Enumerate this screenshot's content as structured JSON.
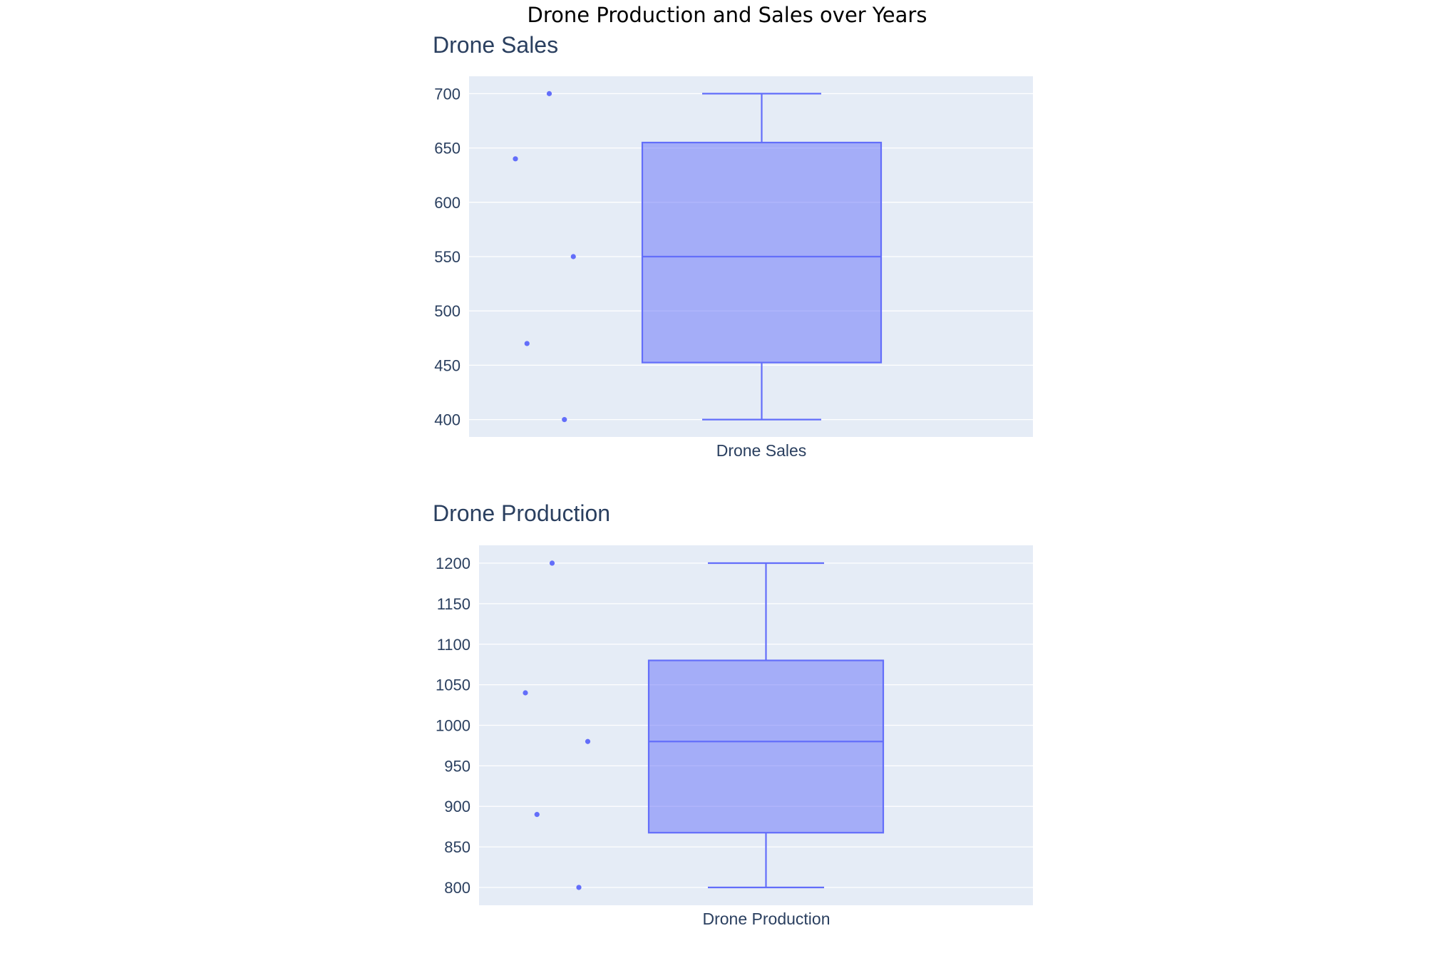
{
  "figure": {
    "title": "Drone Production and Sales over Years"
  },
  "colors": {
    "plot_bg": "#e5ecf6",
    "grid": "#ffffff",
    "box_line": "#636efa",
    "box_fill": "#636efa",
    "text": "#2a3f5f"
  },
  "chart_data": [
    {
      "type": "box",
      "title": "Drone Sales",
      "category": "Drone Sales",
      "ylim": [
        384,
        716
      ],
      "yticks": [
        400,
        450,
        500,
        550,
        600,
        650,
        700
      ],
      "stats": {
        "min": 400,
        "q1": 452.5,
        "median": 550,
        "q3": 655,
        "max": 700
      },
      "points": [
        700,
        640,
        550,
        470,
        400
      ],
      "grid": true,
      "boxpoints": "all"
    },
    {
      "type": "box",
      "title": "Drone Production",
      "category": "Drone Production",
      "ylim": [
        778,
        1222
      ],
      "yticks": [
        800,
        850,
        900,
        950,
        1000,
        1050,
        1100,
        1150,
        1200
      ],
      "stats": {
        "min": 800,
        "q1": 867.5,
        "median": 980,
        "q3": 1080,
        "max": 1200
      },
      "points": [
        1200,
        1040,
        980,
        890,
        800
      ],
      "grid": true,
      "boxpoints": "all"
    }
  ]
}
